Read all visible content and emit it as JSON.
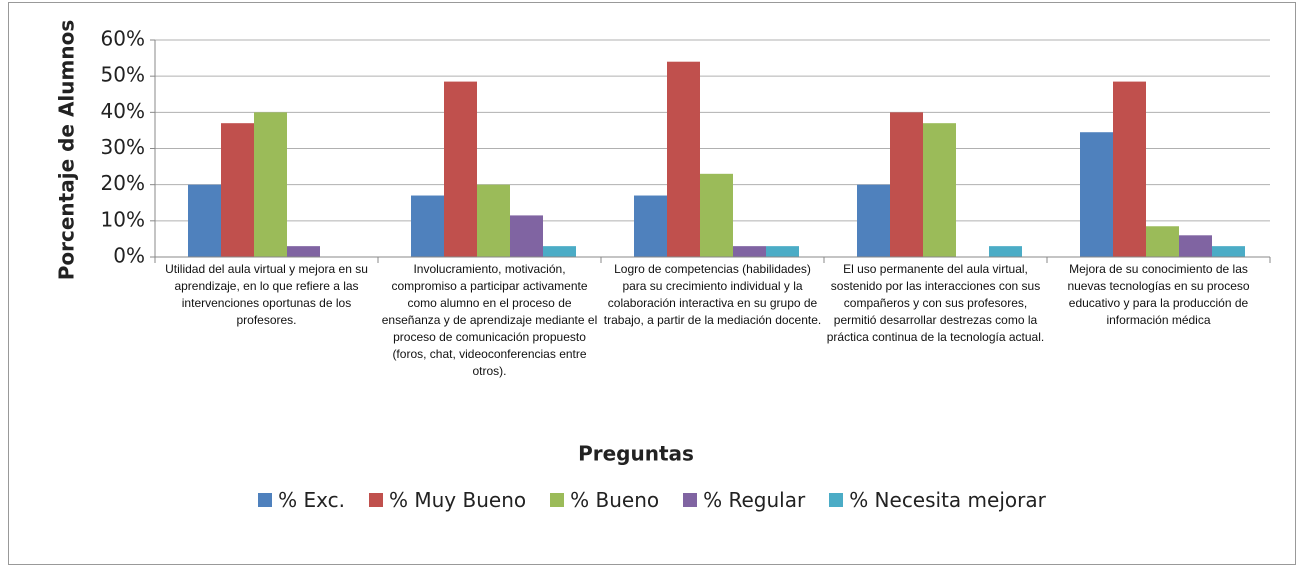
{
  "chart_data": {
    "type": "bar",
    "x_label": "Preguntas",
    "y_label": "Porcentaje de Alumnos",
    "categories": [
      "Utilidad del aula virtual y mejora en su aprendizaje, en lo que refiere a las intervenciones oportunas de los profesores.",
      "Involucramiento, motivación, compromiso a participar activamente como alumno en el proceso de enseñanza y de aprendizaje mediante el proceso de comunicación propuesto (foros, chat, videoconferencias entre otros).",
      "Logro de competencias (habilidades) para su crecimiento individual y la colaboración interactiva en su grupo de trabajo, a partir de la mediación docente.",
      "El uso permanente del aula virtual, sostenido por las interacciones con sus compañeros y con sus profesores, permitió desarrollar destrezas como la práctica continua de la tecnología actual.",
      "Mejora de su conocimiento de las nuevas tecnologías en su proceso educativo y para la producción de información médica"
    ],
    "series": [
      {
        "name": "% Exc.",
        "color": "#4f81bd",
        "values": [
          20,
          17,
          17,
          20,
          34.5
        ]
      },
      {
        "name": "% Muy Bueno",
        "color": "#c0504d",
        "values": [
          37,
          48.5,
          54,
          40,
          48.5
        ]
      },
      {
        "name": "% Bueno",
        "color": "#9bbb59",
        "values": [
          40,
          20,
          23,
          37,
          8.5
        ]
      },
      {
        "name": "% Regular",
        "color": "#8064a2",
        "values": [
          3,
          11.5,
          3,
          0,
          6
        ]
      },
      {
        "name": "% Necesita mejorar",
        "color": "#4bacc6",
        "values": [
          0,
          3,
          3,
          3,
          3
        ]
      }
    ],
    "ylim": [
      0,
      60
    ],
    "yticks": [
      {
        "value": 0,
        "label": "0%"
      },
      {
        "value": 10,
        "label": "10%"
      },
      {
        "value": 20,
        "label": "20%"
      },
      {
        "value": 30,
        "label": "30%"
      },
      {
        "value": 40,
        "label": "40%"
      },
      {
        "value": 50,
        "label": "50%"
      },
      {
        "value": 60,
        "label": "60%"
      }
    ],
    "grid": true,
    "legend": "bottom"
  }
}
